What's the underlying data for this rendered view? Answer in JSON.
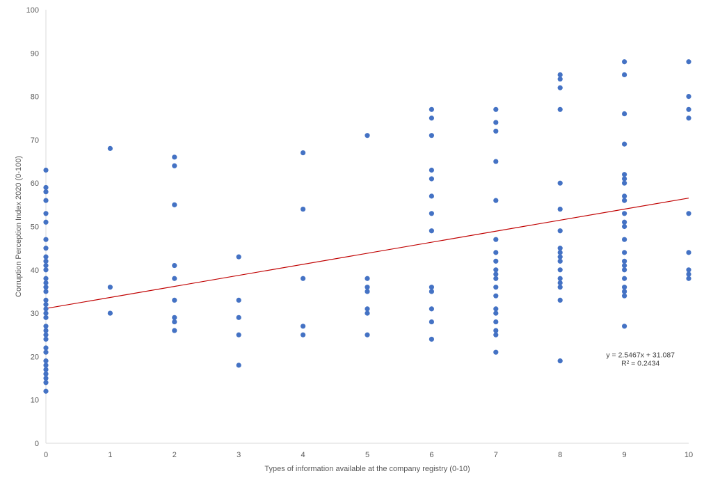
{
  "chart_data": {
    "type": "scatter",
    "title": "",
    "xlabel": "Types of information available at the company registry (0-10)",
    "ylabel": "Corruption Perception Index 2020 (0-100)",
    "xlim": [
      0,
      10
    ],
    "ylim": [
      0,
      100
    ],
    "x_ticks": [
      0,
      1,
      2,
      3,
      4,
      5,
      6,
      7,
      8,
      9,
      10
    ],
    "y_ticks": [
      0,
      10,
      20,
      30,
      40,
      50,
      60,
      70,
      80,
      90,
      100
    ],
    "grid": false,
    "legend": "none",
    "marker_color": "#4472C4",
    "trendline": {
      "type": "linear",
      "slope": 2.5467,
      "intercept": 31.087,
      "color": "#C00000",
      "equation_label": "y = 2.5467x + 31.087",
      "r2_label": "R² = 0.2434"
    },
    "points": [
      [
        0,
        63
      ],
      [
        0,
        59
      ],
      [
        0,
        58
      ],
      [
        0,
        56
      ],
      [
        0,
        53
      ],
      [
        0,
        51
      ],
      [
        0,
        47
      ],
      [
        0,
        45
      ],
      [
        0,
        43
      ],
      [
        0,
        42
      ],
      [
        0,
        41
      ],
      [
        0,
        40
      ],
      [
        0,
        38
      ],
      [
        0,
        37
      ],
      [
        0,
        36
      ],
      [
        0,
        35
      ],
      [
        0,
        33
      ],
      [
        0,
        32
      ],
      [
        0,
        31
      ],
      [
        0,
        30
      ],
      [
        0,
        29
      ],
      [
        0,
        27
      ],
      [
        0,
        26
      ],
      [
        0,
        25
      ],
      [
        0,
        24
      ],
      [
        0,
        22
      ],
      [
        0,
        21
      ],
      [
        0,
        19
      ],
      [
        0,
        18
      ],
      [
        0,
        17
      ],
      [
        0,
        16
      ],
      [
        0,
        15
      ],
      [
        0,
        14
      ],
      [
        0,
        12
      ],
      [
        1,
        68
      ],
      [
        1,
        36
      ],
      [
        1,
        30
      ],
      [
        2,
        66
      ],
      [
        2,
        64
      ],
      [
        2,
        55
      ],
      [
        2,
        41
      ],
      [
        2,
        38
      ],
      [
        2,
        33
      ],
      [
        2,
        29
      ],
      [
        2,
        28
      ],
      [
        2,
        26
      ],
      [
        3,
        43
      ],
      [
        3,
        33
      ],
      [
        3,
        29
      ],
      [
        3,
        25
      ],
      [
        3,
        18
      ],
      [
        4,
        67
      ],
      [
        4,
        54
      ],
      [
        4,
        38
      ],
      [
        4,
        27
      ],
      [
        4,
        25
      ],
      [
        5,
        71
      ],
      [
        5,
        38
      ],
      [
        5,
        36
      ],
      [
        5,
        35
      ],
      [
        5,
        31
      ],
      [
        5,
        30
      ],
      [
        5,
        25
      ],
      [
        6,
        77
      ],
      [
        6,
        75
      ],
      [
        6,
        71
      ],
      [
        6,
        63
      ],
      [
        6,
        61
      ],
      [
        6,
        57
      ],
      [
        6,
        53
      ],
      [
        6,
        49
      ],
      [
        6,
        36
      ],
      [
        6,
        35
      ],
      [
        6,
        31
      ],
      [
        6,
        28
      ],
      [
        6,
        24
      ],
      [
        7,
        77
      ],
      [
        7,
        74
      ],
      [
        7,
        72
      ],
      [
        7,
        65
      ],
      [
        7,
        56
      ],
      [
        7,
        47
      ],
      [
        7,
        44
      ],
      [
        7,
        42
      ],
      [
        7,
        40
      ],
      [
        7,
        39
      ],
      [
        7,
        38
      ],
      [
        7,
        36
      ],
      [
        7,
        34
      ],
      [
        7,
        31
      ],
      [
        7,
        30
      ],
      [
        7,
        28
      ],
      [
        7,
        26
      ],
      [
        7,
        25
      ],
      [
        7,
        21
      ],
      [
        8,
        85
      ],
      [
        8,
        84
      ],
      [
        8,
        82
      ],
      [
        8,
        77
      ],
      [
        8,
        60
      ],
      [
        8,
        54
      ],
      [
        8,
        49
      ],
      [
        8,
        45
      ],
      [
        8,
        44
      ],
      [
        8,
        43
      ],
      [
        8,
        42
      ],
      [
        8,
        40
      ],
      [
        8,
        38
      ],
      [
        8,
        37
      ],
      [
        8,
        36
      ],
      [
        8,
        33
      ],
      [
        8,
        19
      ],
      [
        9,
        88
      ],
      [
        9,
        85
      ],
      [
        9,
        76
      ],
      [
        9,
        69
      ],
      [
        9,
        62
      ],
      [
        9,
        61
      ],
      [
        9,
        60
      ],
      [
        9,
        57
      ],
      [
        9,
        56
      ],
      [
        9,
        53
      ],
      [
        9,
        51
      ],
      [
        9,
        50
      ],
      [
        9,
        47
      ],
      [
        9,
        44
      ],
      [
        9,
        42
      ],
      [
        9,
        41
      ],
      [
        9,
        40
      ],
      [
        9,
        38
      ],
      [
        9,
        36
      ],
      [
        9,
        35
      ],
      [
        9,
        34
      ],
      [
        9,
        27
      ],
      [
        10,
        88
      ],
      [
        10,
        80
      ],
      [
        10,
        77
      ],
      [
        10,
        75
      ],
      [
        10,
        53
      ],
      [
        10,
        44
      ],
      [
        10,
        40
      ],
      [
        10,
        39
      ],
      [
        10,
        38
      ]
    ]
  }
}
